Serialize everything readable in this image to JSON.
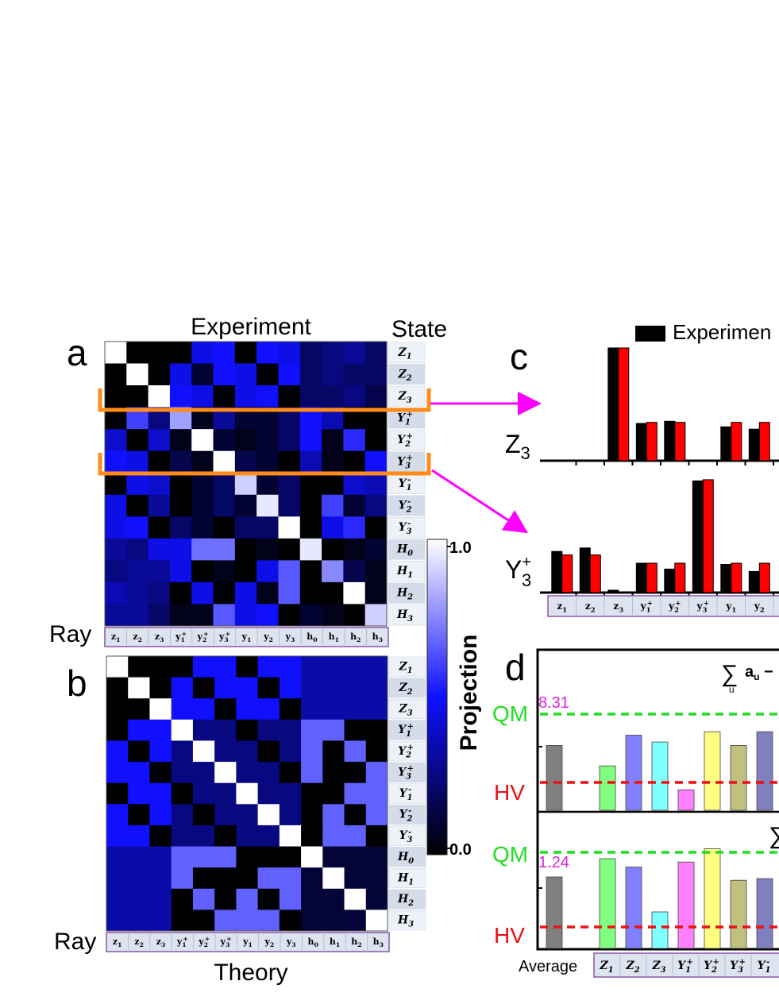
{
  "panel_letters": {
    "a": "a",
    "b": "b",
    "c": "c",
    "d": "d"
  },
  "panel_a": {
    "title": "Experiment",
    "state_label": "State",
    "ray_label": "Ray"
  },
  "panel_b": {
    "xlabel": "Theory",
    "ray_label": "Ray"
  },
  "colorbar": {
    "label": "Projection",
    "max_label": "1.0",
    "min_label": "0.0",
    "colors": [
      "#000000",
      "#1010ff",
      "#ffffff"
    ]
  },
  "state_labels": [
    "Z1",
    "Z2",
    "Z3",
    "Y1+",
    "Y2+",
    "Y3+",
    "Y1−",
    "Y2−",
    "Y3−",
    "H0",
    "H1",
    "H2",
    "H3"
  ],
  "ray_labels": [
    "z1",
    "z2",
    "z3",
    "y1+",
    "y2+",
    "y3+",
    "y1",
    "y2",
    "y3",
    "h0",
    "h1",
    "h2",
    "h3"
  ],
  "panel_c": {
    "legend_experiment": "Experimen",
    "legend_colors": {
      "experiment": "#000000",
      "theory": "#ff0000"
    },
    "row_labels": [
      "Z3",
      "Y3+"
    ]
  },
  "panel_d": {
    "formula_text": "∑ a − ",
    "formula_sub": "u",
    "qm_label": "QM",
    "hv_label": "HV",
    "value_top": "8.31",
    "value_bottom": "1.24",
    "xlabel_average": "Average",
    "x_categories": [
      "Z1",
      "Z2",
      "Z3",
      "Y1+",
      "Y2+",
      "Y3+",
      "Y1−"
    ],
    "colors": {
      "qm_line": "#22dd22",
      "hv_line": "#ee1111",
      "value_text": "#dd22dd"
    }
  },
  "chart_data": [
    {
      "type": "heatmap",
      "title": "Experiment",
      "xlabel": "Ray",
      "ylabel": "State",
      "x": [
        "z1",
        "z2",
        "z3",
        "y1+",
        "y2+",
        "y3+",
        "y1",
        "y2",
        "y3",
        "h0",
        "h1",
        "h2",
        "h3"
      ],
      "y": [
        "Z1",
        "Z2",
        "Z3",
        "Y1+",
        "Y2+",
        "Y3+",
        "Y1−",
        "Y2−",
        "Y3−",
        "H0",
        "H1",
        "H2",
        "H3"
      ],
      "range": [
        0,
        1.0
      ],
      "values": [
        [
          1.0,
          0.0,
          0.0,
          0.0,
          0.45,
          0.5,
          0.0,
          0.5,
          0.45,
          0.2,
          0.25,
          0.3,
          0.2
        ],
        [
          0.0,
          1.0,
          0.0,
          0.45,
          0.1,
          0.5,
          0.45,
          0.0,
          0.5,
          0.2,
          0.25,
          0.2,
          0.2
        ],
        [
          0.0,
          0.0,
          1.0,
          0.5,
          0.45,
          0.0,
          0.45,
          0.5,
          0.0,
          0.2,
          0.2,
          0.25,
          0.15
        ],
        [
          0.0,
          0.6,
          0.25,
          0.8,
          0.05,
          0.3,
          0.1,
          0.1,
          0.2,
          0.5,
          0.35,
          0.0,
          0.0
        ],
        [
          0.4,
          0.0,
          0.4,
          0.05,
          1.0,
          0.1,
          0.05,
          0.1,
          0.2,
          0.5,
          0.05,
          0.55,
          0.0
        ],
        [
          0.5,
          0.45,
          0.0,
          0.15,
          0.05,
          1.0,
          0.15,
          0.1,
          0.0,
          0.35,
          0.05,
          0.0,
          0.5
        ],
        [
          0.0,
          0.45,
          0.4,
          0.0,
          0.1,
          0.2,
          0.9,
          0.1,
          0.2,
          0.0,
          0.0,
          0.4,
          0.35
        ],
        [
          0.45,
          0.0,
          0.3,
          0.0,
          0.1,
          0.2,
          0.1,
          0.95,
          0.2,
          0.0,
          0.6,
          0.1,
          0.25
        ],
        [
          0.45,
          0.5,
          0.0,
          0.2,
          0.1,
          0.0,
          0.2,
          0.2,
          1.0,
          0.0,
          0.45,
          0.55,
          0.0
        ],
        [
          0.3,
          0.25,
          0.45,
          0.45,
          0.7,
          0.7,
          0.0,
          0.05,
          0.0,
          0.95,
          0.0,
          0.05,
          0.1
        ],
        [
          0.25,
          0.3,
          0.3,
          0.45,
          0.0,
          0.05,
          0.0,
          0.45,
          0.65,
          0.0,
          0.75,
          0.15,
          0.05
        ],
        [
          0.35,
          0.3,
          0.25,
          0.0,
          0.45,
          0.0,
          0.45,
          0.05,
          0.65,
          0.0,
          0.0,
          1.0,
          0.05
        ],
        [
          0.3,
          0.3,
          0.2,
          0.05,
          0.05,
          0.65,
          0.45,
          0.5,
          0.0,
          0.1,
          0.05,
          0.0,
          0.9
        ]
      ]
    },
    {
      "type": "heatmap",
      "title": "",
      "xlabel": "Theory",
      "ylabel": "State",
      "x": [
        "z1",
        "z2",
        "z3",
        "y1+",
        "y2+",
        "y3+",
        "y1",
        "y2",
        "y3",
        "h0",
        "h1",
        "h2",
        "h3"
      ],
      "y": [
        "Z1",
        "Z2",
        "Z3",
        "Y1+",
        "Y2+",
        "Y3+",
        "Y1−",
        "Y2−",
        "Y3−",
        "H0",
        "H1",
        "H2",
        "H3"
      ],
      "range": [
        0,
        1.0
      ],
      "values": [
        [
          1.0,
          0.0,
          0.0,
          0.0,
          0.5,
          0.5,
          0.0,
          0.5,
          0.5,
          0.33,
          0.33,
          0.33,
          0.33
        ],
        [
          0.0,
          1.0,
          0.0,
          0.5,
          0.0,
          0.5,
          0.5,
          0.0,
          0.5,
          0.33,
          0.33,
          0.33,
          0.33
        ],
        [
          0.0,
          0.0,
          1.0,
          0.5,
          0.5,
          0.0,
          0.5,
          0.5,
          0.0,
          0.33,
          0.33,
          0.33,
          0.33
        ],
        [
          0.0,
          0.5,
          0.5,
          1.0,
          0.25,
          0.25,
          0.0,
          0.25,
          0.25,
          0.67,
          0.67,
          0.0,
          0.0
        ],
        [
          0.5,
          0.0,
          0.5,
          0.25,
          1.0,
          0.25,
          0.25,
          0.0,
          0.25,
          0.67,
          0.0,
          0.67,
          0.0
        ],
        [
          0.5,
          0.5,
          0.0,
          0.25,
          0.25,
          1.0,
          0.25,
          0.25,
          0.0,
          0.67,
          0.0,
          0.0,
          0.67
        ],
        [
          0.0,
          0.5,
          0.5,
          0.0,
          0.25,
          0.25,
          1.0,
          0.25,
          0.25,
          0.0,
          0.0,
          0.67,
          0.67
        ],
        [
          0.5,
          0.0,
          0.5,
          0.25,
          0.0,
          0.25,
          0.25,
          1.0,
          0.25,
          0.0,
          0.67,
          0.0,
          0.67
        ],
        [
          0.5,
          0.5,
          0.0,
          0.25,
          0.25,
          0.0,
          0.25,
          0.25,
          1.0,
          0.0,
          0.67,
          0.67,
          0.0
        ],
        [
          0.33,
          0.33,
          0.33,
          0.67,
          0.67,
          0.67,
          0.0,
          0.0,
          0.0,
          1.0,
          0.11,
          0.11,
          0.11
        ],
        [
          0.33,
          0.33,
          0.33,
          0.67,
          0.0,
          0.0,
          0.0,
          0.67,
          0.67,
          0.11,
          1.0,
          0.11,
          0.11
        ],
        [
          0.33,
          0.33,
          0.33,
          0.0,
          0.67,
          0.0,
          0.67,
          0.0,
          0.67,
          0.11,
          0.11,
          1.0,
          0.11
        ],
        [
          0.33,
          0.33,
          0.33,
          0.0,
          0.0,
          0.67,
          0.67,
          0.67,
          0.0,
          0.11,
          0.11,
          0.11,
          1.0
        ]
      ]
    },
    {
      "type": "bar",
      "row_label": "Z3",
      "categories": [
        "z1",
        "z2",
        "z3",
        "y1+",
        "y2+",
        "y3+",
        "y1",
        "y2"
      ],
      "series": [
        {
          "name": "Experimen",
          "values": [
            0.0,
            0.0,
            1.0,
            0.33,
            0.35,
            0.0,
            0.3,
            0.28
          ]
        },
        {
          "values": [
            0.0,
            0.0,
            1.0,
            0.34,
            0.34,
            0.0,
            0.34,
            0.34
          ]
        }
      ],
      "ylim": [
        0,
        1.0
      ]
    },
    {
      "type": "bar",
      "row_label": "Y3+",
      "categories": [
        "z1",
        "z2",
        "z3",
        "y1+",
        "y2+",
        "y3+",
        "y1",
        "y2"
      ],
      "series": [
        {
          "name": "Experimen",
          "values": [
            0.35,
            0.38,
            0.02,
            0.25,
            0.2,
            0.95,
            0.24,
            0.18
          ]
        },
        {
          "values": [
            0.32,
            0.32,
            0.0,
            0.25,
            0.25,
            0.96,
            0.25,
            0.25
          ]
        }
      ],
      "ylim": [
        0,
        1.0
      ]
    },
    {
      "type": "bar",
      "categories": [
        "Average",
        "Z1",
        "Z2",
        "Z3",
        "Y1+",
        "Y2+",
        "Y3+",
        "Y1−"
      ],
      "values": [
        7.2,
        6.6,
        7.5,
        7.3,
        5.9,
        7.6,
        7.2,
        7.6
      ],
      "reference_lines": {
        "QM": 8.31
      },
      "colors": [
        "#808080",
        "#80ff80",
        "#8080ff",
        "#80ffff",
        "#ff80ff",
        "#ffff80",
        "#c0c080",
        "#8080c0"
      ]
    },
    {
      "type": "bar",
      "categories": [
        "Average",
        "Z1",
        "Z2",
        "Z3",
        "Y1+",
        "Y2+",
        "Y3+",
        "Y1−"
      ],
      "values": [
        1.13,
        1.24,
        1.19,
        0.92,
        1.22,
        1.3,
        1.11,
        1.12
      ],
      "reference_lines": {
        "QM": 1.24
      },
      "colors": [
        "#808080",
        "#80ff80",
        "#8080ff",
        "#80ffff",
        "#ff80ff",
        "#ffff80",
        "#c0c080",
        "#8080c0"
      ]
    }
  ]
}
